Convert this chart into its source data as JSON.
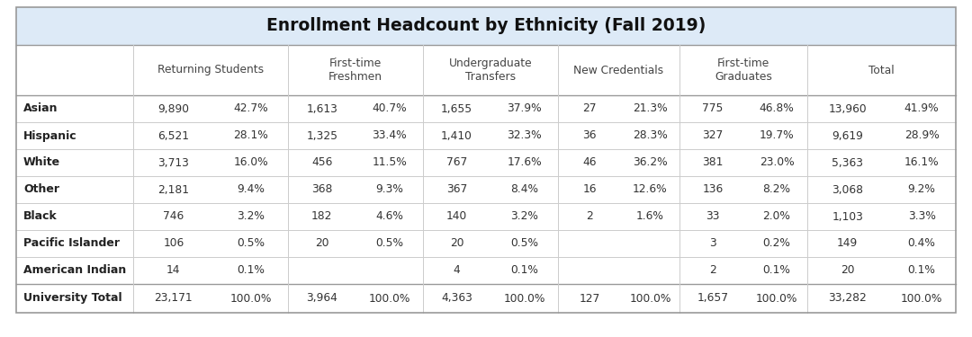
{
  "title": "Enrollment Headcount by Ethnicity (Fall 2019)",
  "rows": [
    {
      "label": "Asian",
      "rs_n": "9,890",
      "rs_p": "42.7%",
      "ff_n": "1,613",
      "ff_p": "40.7%",
      "ut_n": "1,655",
      "ut_p": "37.9%",
      "nc_n": "27",
      "nc_p": "21.3%",
      "fg_n": "775",
      "fg_p": "46.8%",
      "t_n": "13,960",
      "t_p": "41.9%",
      "bold": true
    },
    {
      "label": "Hispanic",
      "rs_n": "6,521",
      "rs_p": "28.1%",
      "ff_n": "1,325",
      "ff_p": "33.4%",
      "ut_n": "1,410",
      "ut_p": "32.3%",
      "nc_n": "36",
      "nc_p": "28.3%",
      "fg_n": "327",
      "fg_p": "19.7%",
      "t_n": "9,619",
      "t_p": "28.9%",
      "bold": true
    },
    {
      "label": "White",
      "rs_n": "3,713",
      "rs_p": "16.0%",
      "ff_n": "456",
      "ff_p": "11.5%",
      "ut_n": "767",
      "ut_p": "17.6%",
      "nc_n": "46",
      "nc_p": "36.2%",
      "fg_n": "381",
      "fg_p": "23.0%",
      "t_n": "5,363",
      "t_p": "16.1%",
      "bold": true
    },
    {
      "label": "Other",
      "rs_n": "2,181",
      "rs_p": "9.4%",
      "ff_n": "368",
      "ff_p": "9.3%",
      "ut_n": "367",
      "ut_p": "8.4%",
      "nc_n": "16",
      "nc_p": "12.6%",
      "fg_n": "136",
      "fg_p": "8.2%",
      "t_n": "3,068",
      "t_p": "9.2%",
      "bold": true
    },
    {
      "label": "Black",
      "rs_n": "746",
      "rs_p": "3.2%",
      "ff_n": "182",
      "ff_p": "4.6%",
      "ut_n": "140",
      "ut_p": "3.2%",
      "nc_n": "2",
      "nc_p": "1.6%",
      "fg_n": "33",
      "fg_p": "2.0%",
      "t_n": "1,103",
      "t_p": "3.3%",
      "bold": true
    },
    {
      "label": "Pacific Islander",
      "rs_n": "106",
      "rs_p": "0.5%",
      "ff_n": "20",
      "ff_p": "0.5%",
      "ut_n": "20",
      "ut_p": "0.5%",
      "nc_n": "",
      "nc_p": "",
      "fg_n": "3",
      "fg_p": "0.2%",
      "t_n": "149",
      "t_p": "0.4%",
      "bold": true
    },
    {
      "label": "American Indian",
      "rs_n": "14",
      "rs_p": "0.1%",
      "ff_n": "",
      "ff_p": "",
      "ut_n": "4",
      "ut_p": "0.1%",
      "nc_n": "",
      "nc_p": "",
      "fg_n": "2",
      "fg_p": "0.1%",
      "t_n": "20",
      "t_p": "0.1%",
      "bold": true
    },
    {
      "label": "University Total",
      "rs_n": "23,171",
      "rs_p": "100.0%",
      "ff_n": "3,964",
      "ff_p": "100.0%",
      "ut_n": "4,363",
      "ut_p": "100.0%",
      "nc_n": "127",
      "nc_p": "100.0%",
      "fg_n": "1,657",
      "fg_p": "100.0%",
      "t_n": "33,282",
      "t_p": "100.0%",
      "bold": true
    }
  ],
  "group_headers": [
    "Returning Students",
    "First-time\nFreshmen",
    "Undergraduate\nTransfers",
    "New Credentials",
    "First-time\nGraduates",
    "Total"
  ],
  "title_bg": "#ddeaf7",
  "header_bg": "#ffffff",
  "data_bg": "#ffffff",
  "border_light": "#cccccc",
  "border_dark": "#999999",
  "text_dark": "#222222",
  "text_medium": "#444444",
  "label_fontsize": 9.0,
  "data_fontsize": 8.8,
  "header_fontsize": 8.8,
  "title_fontsize": 13.5
}
